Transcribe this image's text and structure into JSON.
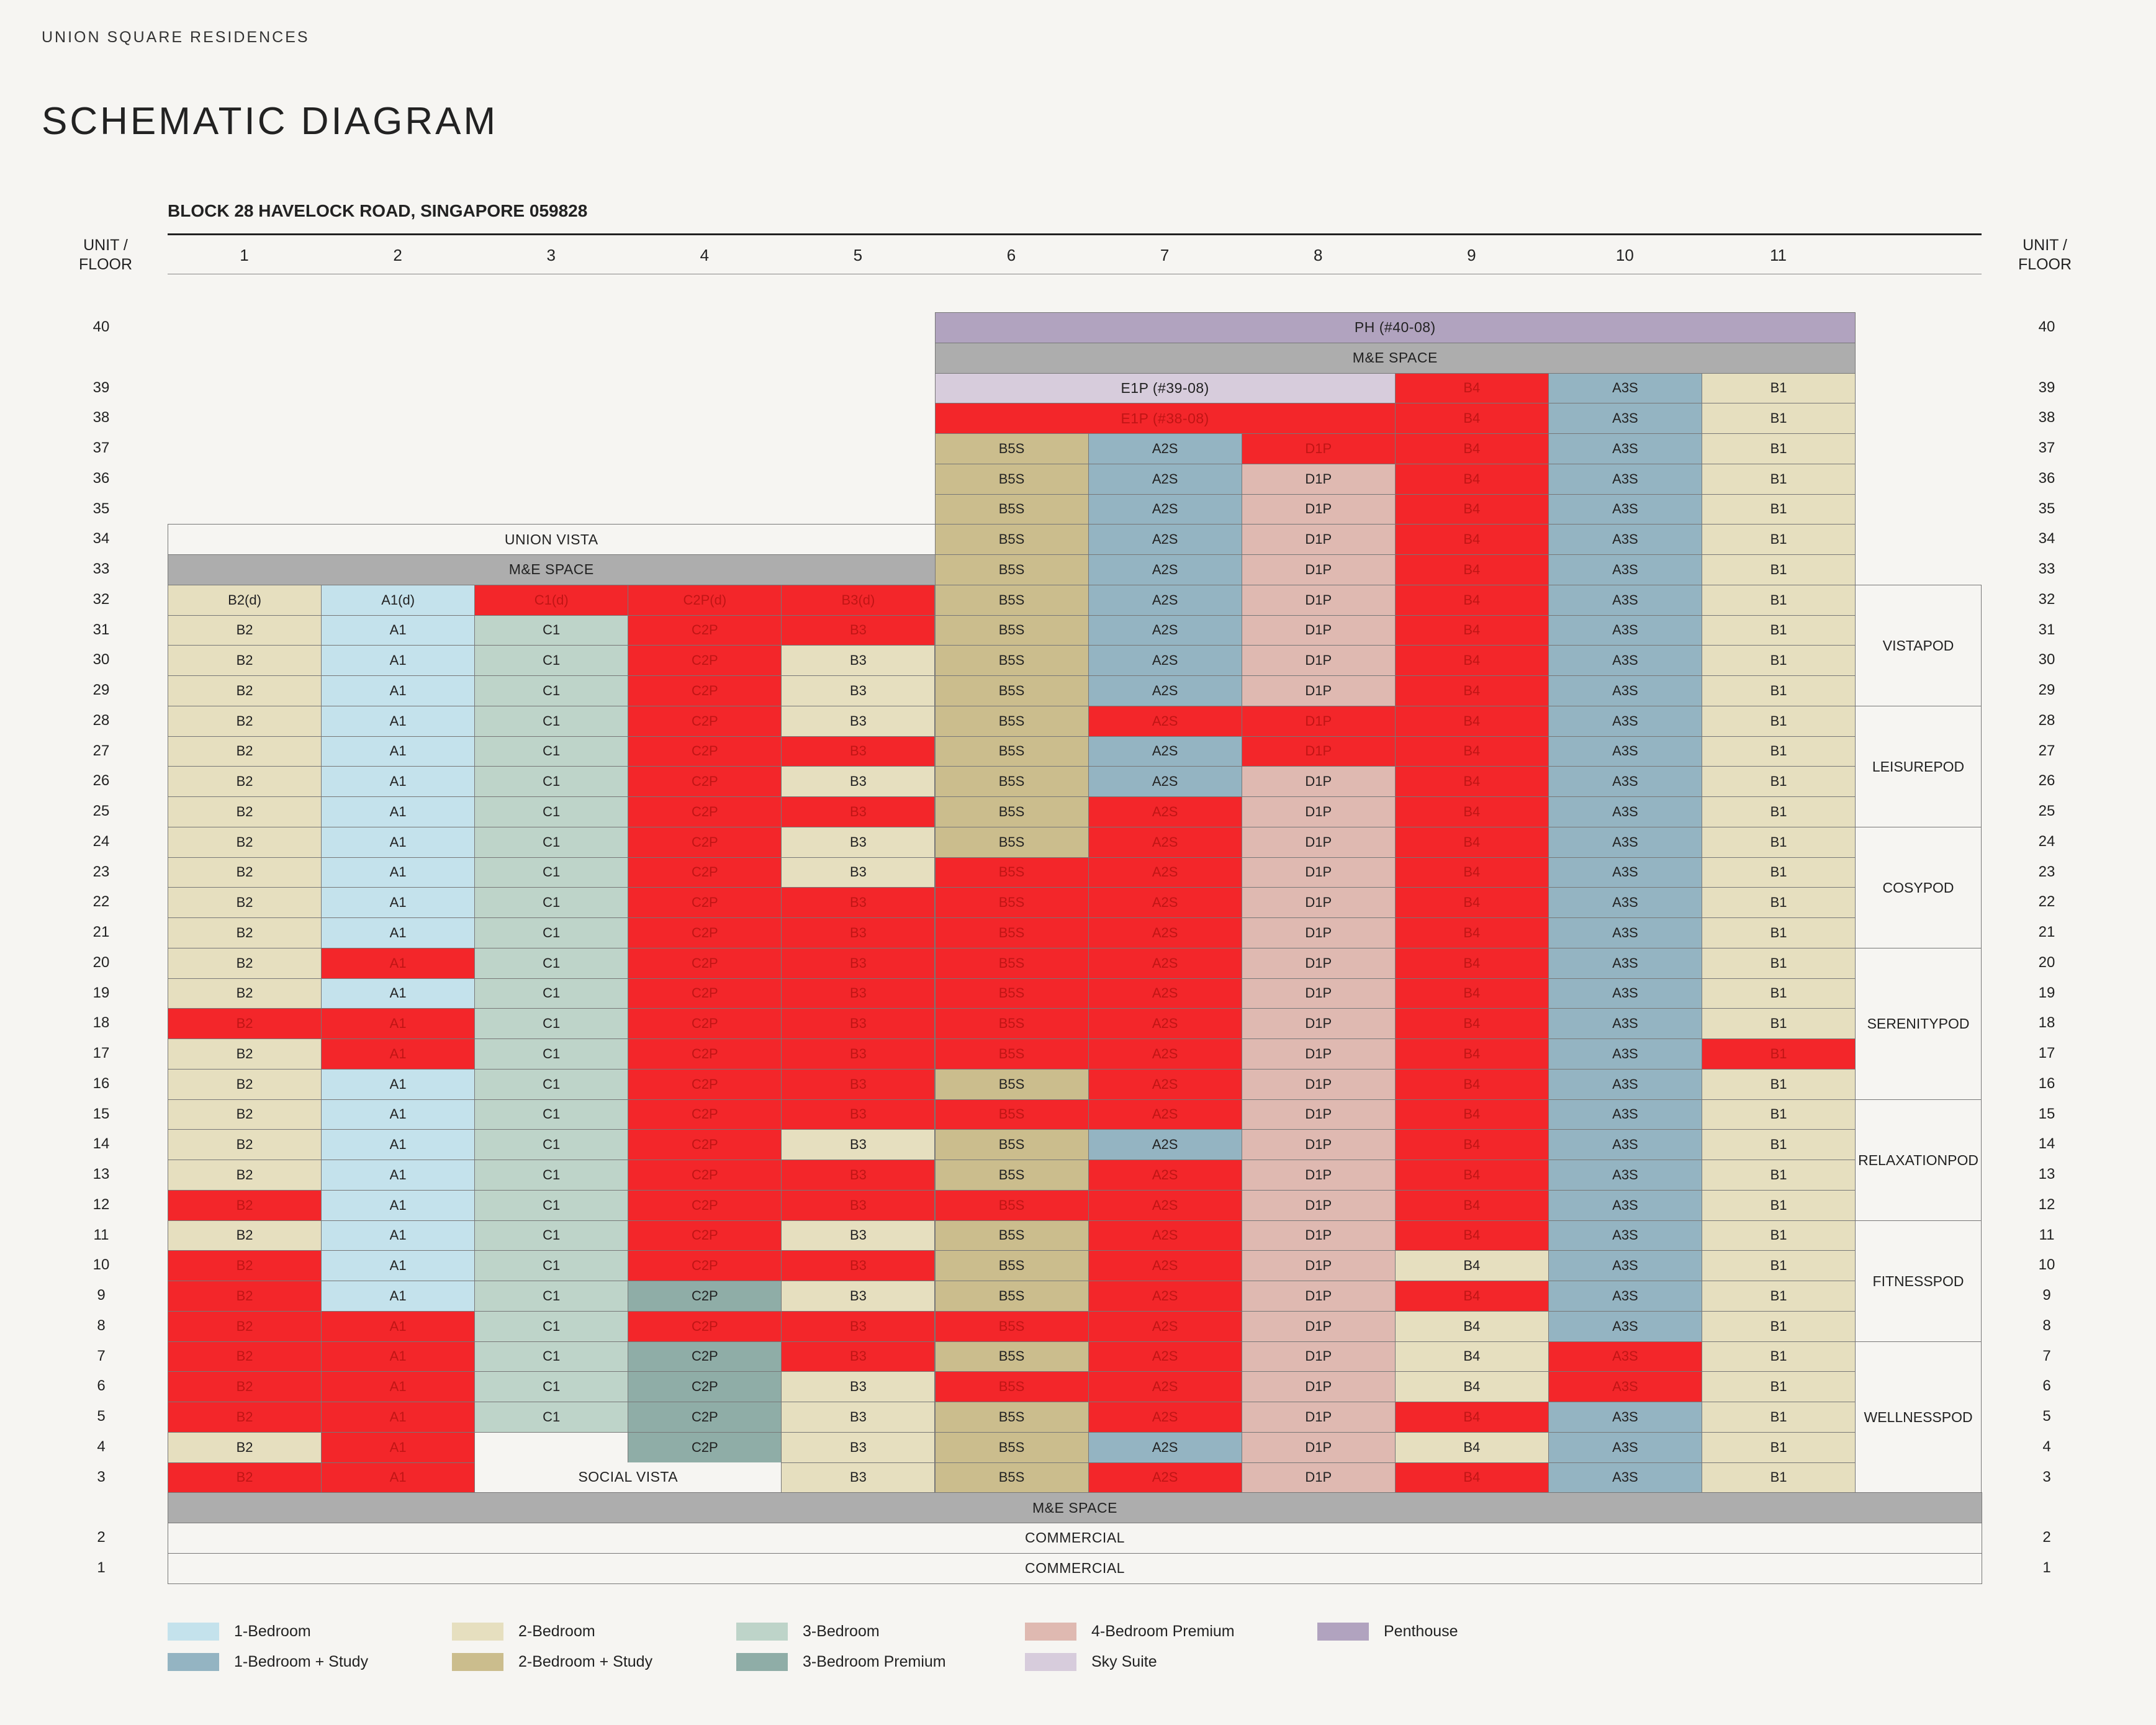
{
  "header": {
    "brand": "UNION SQUARE RESIDENCES",
    "title": "SCHEMATIC DIAGRAM",
    "block_address": "BLOCK 28 HAVELOCK ROAD, SINGAPORE 059828",
    "unit_floor_label_line1": "UNIT /",
    "unit_floor_label_line2": "FLOOR"
  },
  "columns": [
    "1",
    "2",
    "3",
    "4",
    "5",
    "6",
    "7",
    "8",
    "9",
    "10",
    "11"
  ],
  "colors": {
    "1-Bedroom": "#c4e2ec",
    "1-Bedroom + Study": "#94b4c2",
    "2-Bedroom": "#e6dfbf",
    "2-Bedroom + Study": "#cbbd8d",
    "3-Bedroom": "#bed4c9",
    "3-Bedroom Premium": "#8fada7",
    "4-Bedroom Premium": "#dfb9b1",
    "Sky Suite": "#d7ccdc",
    "Penthouse": "#b1a3bf",
    "sold": "#f3262a",
    "sold_dark": "#e21f24",
    "service": "#adadad",
    "blank": "#f6f5f2"
  },
  "floors": {
    "40": {
      "full": [
        {
          "start": 6,
          "span": 6,
          "label": "PH (#40-08)",
          "type": "Penthouse"
        }
      ]
    },
    "39": {
      "full": [
        {
          "start": 6,
          "span": 3,
          "label": "E1P (#39-08)",
          "type": "Sky Suite"
        }
      ],
      "units": {
        "9": "B4*",
        "10": "A3S",
        "11": "B1"
      }
    },
    "38": {
      "full": [
        {
          "start": 6,
          "span": 3,
          "label": "E1P (#38-08)",
          "type": "sold"
        }
      ],
      "units": {
        "9": "B4*",
        "10": "A3S",
        "11": "B1"
      }
    },
    "37": {
      "units": {
        "6": "B5S",
        "7": "A2S",
        "8": "D1P*",
        "9": "B4*",
        "10": "A3S",
        "11": "B1"
      }
    },
    "36": {
      "units": {
        "6": "B5S",
        "7": "A2S",
        "8": "D1P",
        "9": "B4*",
        "10": "A3S",
        "11": "B1"
      }
    },
    "35": {
      "units": {
        "6": "B5S",
        "7": "A2S",
        "8": "D1P",
        "9": "B4*",
        "10": "A3S",
        "11": "B1"
      }
    },
    "34": {
      "units": {
        "6": "B5S",
        "7": "A2S",
        "8": "D1P",
        "9": "B4*",
        "10": "A3S",
        "11": "B1"
      }
    },
    "33": {
      "units": {
        "6": "B5S",
        "7": "A2S",
        "8": "D1P",
        "9": "B4*",
        "10": "A3S",
        "11": "B1"
      }
    },
    "32": {
      "units": {
        "1": "B2(d)",
        "2": "A1(d)",
        "3": "C1(d)*",
        "4": "C2P(d)*",
        "5": "B3(d)*",
        "6": "B5S",
        "7": "A2S",
        "8": "D1P",
        "9": "B4*",
        "10": "A3S",
        "11": "B1"
      }
    },
    "31": {
      "units": {
        "1": "B2",
        "2": "A1",
        "3": "C1",
        "4": "C2P*",
        "5": "B3*",
        "6": "B5S",
        "7": "A2S",
        "8": "D1P",
        "9": "B4*",
        "10": "A3S",
        "11": "B1"
      }
    },
    "30": {
      "units": {
        "1": "B2",
        "2": "A1",
        "3": "C1",
        "4": "C2P*",
        "5": "B3",
        "6": "B5S",
        "7": "A2S",
        "8": "D1P",
        "9": "B4*",
        "10": "A3S",
        "11": "B1"
      }
    },
    "29": {
      "units": {
        "1": "B2",
        "2": "A1",
        "3": "C1",
        "4": "C2P*",
        "5": "B3",
        "6": "B5S",
        "7": "A2S",
        "8": "D1P",
        "9": "B4*",
        "10": "A3S",
        "11": "B1"
      }
    },
    "28": {
      "units": {
        "1": "B2",
        "2": "A1",
        "3": "C1",
        "4": "C2P*",
        "5": "B3",
        "6": "B5S",
        "7": "A2S*",
        "8": "D1P*",
        "9": "B4*",
        "10": "A3S",
        "11": "B1"
      }
    },
    "27": {
      "units": {
        "1": "B2",
        "2": "A1",
        "3": "C1",
        "4": "C2P*",
        "5": "B3*",
        "6": "B5S",
        "7": "A2S",
        "8": "D1P*",
        "9": "B4*",
        "10": "A3S",
        "11": "B1"
      }
    },
    "26": {
      "units": {
        "1": "B2",
        "2": "A1",
        "3": "C1",
        "4": "C2P*",
        "5": "B3",
        "6": "B5S",
        "7": "A2S",
        "8": "D1P",
        "9": "B4*",
        "10": "A3S",
        "11": "B1"
      }
    },
    "25": {
      "units": {
        "1": "B2",
        "2": "A1",
        "3": "C1",
        "4": "C2P*",
        "5": "B3*",
        "6": "B5S",
        "7": "A2S*",
        "8": "D1P",
        "9": "B4*",
        "10": "A3S",
        "11": "B1"
      }
    },
    "24": {
      "units": {
        "1": "B2",
        "2": "A1",
        "3": "C1",
        "4": "C2P*",
        "5": "B3",
        "6": "B5S",
        "7": "A2S*",
        "8": "D1P",
        "9": "B4*",
        "10": "A3S",
        "11": "B1"
      }
    },
    "23": {
      "units": {
        "1": "B2",
        "2": "A1",
        "3": "C1",
        "4": "C2P*",
        "5": "B3",
        "6": "B5S*",
        "7": "A2S*",
        "8": "D1P",
        "9": "B4*",
        "10": "A3S",
        "11": "B1"
      }
    },
    "22": {
      "units": {
        "1": "B2",
        "2": "A1",
        "3": "C1",
        "4": "C2P*",
        "5": "B3*",
        "6": "B5S*",
        "7": "A2S*",
        "8": "D1P",
        "9": "B4*",
        "10": "A3S",
        "11": "B1"
      }
    },
    "21": {
      "units": {
        "1": "B2",
        "2": "A1",
        "3": "C1",
        "4": "C2P*",
        "5": "B3*",
        "6": "B5S*",
        "7": "A2S*",
        "8": "D1P",
        "9": "B4*",
        "10": "A3S",
        "11": "B1"
      }
    },
    "20": {
      "units": {
        "1": "B2",
        "2": "A1*",
        "3": "C1",
        "4": "C2P*",
        "5": "B3*",
        "6": "B5S*",
        "7": "A2S*",
        "8": "D1P",
        "9": "B4*",
        "10": "A3S",
        "11": "B1"
      }
    },
    "19": {
      "units": {
        "1": "B2",
        "2": "A1",
        "3": "C1",
        "4": "C2P*",
        "5": "B3*",
        "6": "B5S*",
        "7": "A2S*",
        "8": "D1P",
        "9": "B4*",
        "10": "A3S",
        "11": "B1"
      }
    },
    "18": {
      "units": {
        "1": "B2*",
        "2": "A1*",
        "3": "C1",
        "4": "C2P*",
        "5": "B3*",
        "6": "B5S*",
        "7": "A2S*",
        "8": "D1P",
        "9": "B4*",
        "10": "A3S",
        "11": "B1"
      }
    },
    "17": {
      "units": {
        "1": "B2",
        "2": "A1*",
        "3": "C1",
        "4": "C2P*",
        "5": "B3*",
        "6": "B5S*",
        "7": "A2S*",
        "8": "D1P",
        "9": "B4*",
        "10": "A3S",
        "11": "B1*"
      }
    },
    "16": {
      "units": {
        "1": "B2",
        "2": "A1",
        "3": "C1",
        "4": "C2P*",
        "5": "B3*",
        "6": "B5S",
        "7": "A2S*",
        "8": "D1P",
        "9": "B4*",
        "10": "A3S",
        "11": "B1"
      }
    },
    "15": {
      "units": {
        "1": "B2",
        "2": "A1",
        "3": "C1",
        "4": "C2P*",
        "5": "B3*",
        "6": "B5S*",
        "7": "A2S*",
        "8": "D1P",
        "9": "B4*",
        "10": "A3S",
        "11": "B1"
      }
    },
    "14": {
      "units": {
        "1": "B2",
        "2": "A1",
        "3": "C1",
        "4": "C2P*",
        "5": "B3",
        "6": "B5S",
        "7": "A2S",
        "8": "D1P",
        "9": "B4*",
        "10": "A3S",
        "11": "B1"
      }
    },
    "13": {
      "units": {
        "1": "B2",
        "2": "A1",
        "3": "C1",
        "4": "C2P*",
        "5": "B3*",
        "6": "B5S",
        "7": "A2S*",
        "8": "D1P",
        "9": "B4*",
        "10": "A3S",
        "11": "B1"
      }
    },
    "12": {
      "units": {
        "1": "B2*",
        "2": "A1",
        "3": "C1",
        "4": "C2P*",
        "5": "B3*",
        "6": "B5S*",
        "7": "A2S*",
        "8": "D1P",
        "9": "B4*",
        "10": "A3S",
        "11": "B1"
      }
    },
    "11": {
      "units": {
        "1": "B2",
        "2": "A1",
        "3": "C1",
        "4": "C2P*",
        "5": "B3",
        "6": "B5S",
        "7": "A2S*",
        "8": "D1P",
        "9": "B4*",
        "10": "A3S",
        "11": "B1"
      }
    },
    "10": {
      "units": {
        "1": "B2*",
        "2": "A1",
        "3": "C1",
        "4": "C2P*",
        "5": "B3*",
        "6": "B5S",
        "7": "A2S*",
        "8": "D1P",
        "9": "B4",
        "10": "A3S",
        "11": "B1"
      }
    },
    "9": {
      "units": {
        "1": "B2*",
        "2": "A1",
        "3": "C1",
        "4": "C2P",
        "5": "B3",
        "6": "B5S",
        "7": "A2S*",
        "8": "D1P",
        "9": "B4*",
        "10": "A3S",
        "11": "B1"
      }
    },
    "8": {
      "units": {
        "1": "B2*",
        "2": "A1*",
        "3": "C1",
        "4": "C2P*",
        "5": "B3*",
        "6": "B5S*",
        "7": "A2S*",
        "8": "D1P",
        "9": "B4",
        "10": "A3S",
        "11": "B1"
      }
    },
    "7": {
      "units": {
        "1": "B2*",
        "2": "A1*",
        "3": "C1",
        "4": "C2P",
        "5": "B3*",
        "6": "B5S",
        "7": "A2S*",
        "8": "D1P",
        "9": "B4",
        "10": "A3S*",
        "11": "B1"
      }
    },
    "6": {
      "units": {
        "1": "B2*",
        "2": "A1*",
        "3": "C1",
        "4": "C2P",
        "5": "B3",
        "6": "B5S*",
        "7": "A2S*",
        "8": "D1P",
        "9": "B4",
        "10": "A3S*",
        "11": "B1"
      }
    },
    "5": {
      "units": {
        "1": "B2*",
        "2": "A1*",
        "3": "C1",
        "4": "C2P",
        "5": "B3",
        "6": "B5S",
        "7": "A2S*",
        "8": "D1P",
        "9": "B4*",
        "10": "A3S",
        "11": "B1"
      }
    },
    "4": {
      "units": {
        "1": "B2",
        "2": "A1*",
        "4": "C2P",
        "5": "B3",
        "6": "B5S",
        "7": "A2S",
        "8": "D1P",
        "9": "B4",
        "10": "A3S",
        "11": "B1"
      }
    },
    "3": {
      "units": {
        "1": "B2*",
        "2": "A1*",
        "5": "B3",
        "6": "B5S",
        "7": "A2S*",
        "8": "D1P",
        "9": "B4*",
        "10": "A3S",
        "11": "B1"
      }
    }
  },
  "bands": [
    {
      "floor": "39.5",
      "start": 6,
      "span": 6,
      "label": "M&E SPACE",
      "type": "service"
    },
    {
      "floor": "34",
      "start": 1,
      "span": 5,
      "label": "UNION VISTA",
      "type": "blank"
    },
    {
      "floor": "33",
      "start": 1,
      "span": 5,
      "label": "M&E SPACE",
      "type": "service"
    },
    {
      "floor": "2.5",
      "start": 1,
      "span": 12,
      "label": "M&E SPACE",
      "type": "service"
    },
    {
      "floor": "2",
      "start": 1,
      "span": 12,
      "label": "COMMERCIAL",
      "type": "blank"
    },
    {
      "floor": "1",
      "start": 1,
      "span": 12,
      "label": "COMMERCIAL",
      "type": "blank"
    }
  ],
  "social_vista": {
    "label": "SOCIAL VISTA"
  },
  "pods": [
    {
      "label": "VISTA POD",
      "top_floor": 32,
      "bottom_floor": 29
    },
    {
      "label": "LEISURE POD",
      "top_floor": 28,
      "bottom_floor": 25
    },
    {
      "label": "COSY POD",
      "top_floor": 24,
      "bottom_floor": 21
    },
    {
      "label": "SERENITY POD",
      "top_floor": 20,
      "bottom_floor": 16
    },
    {
      "label": "RELAXATION POD",
      "top_floor": 15,
      "bottom_floor": 12
    },
    {
      "label": "FITNESS POD",
      "top_floor": 11,
      "bottom_floor": 8
    },
    {
      "label": "WELLNESS POD",
      "top_floor": 7,
      "bottom_floor": 3
    }
  ],
  "legend": [
    {
      "label": "1-Bedroom",
      "type": "1-Bedroom"
    },
    {
      "label": "2-Bedroom",
      "type": "2-Bedroom"
    },
    {
      "label": "3-Bedroom",
      "type": "3-Bedroom"
    },
    {
      "label": "4-Bedroom Premium",
      "type": "4-Bedroom Premium"
    },
    {
      "label": "Penthouse",
      "type": "Penthouse"
    },
    {
      "label": "1-Bedroom + Study",
      "type": "1-Bedroom + Study"
    },
    {
      "label": "2-Bedroom + Study",
      "type": "2-Bedroom + Study"
    },
    {
      "label": "3-Bedroom Premium",
      "type": "3-Bedroom Premium"
    },
    {
      "label": "Sky Suite",
      "type": "Sky Suite"
    }
  ]
}
